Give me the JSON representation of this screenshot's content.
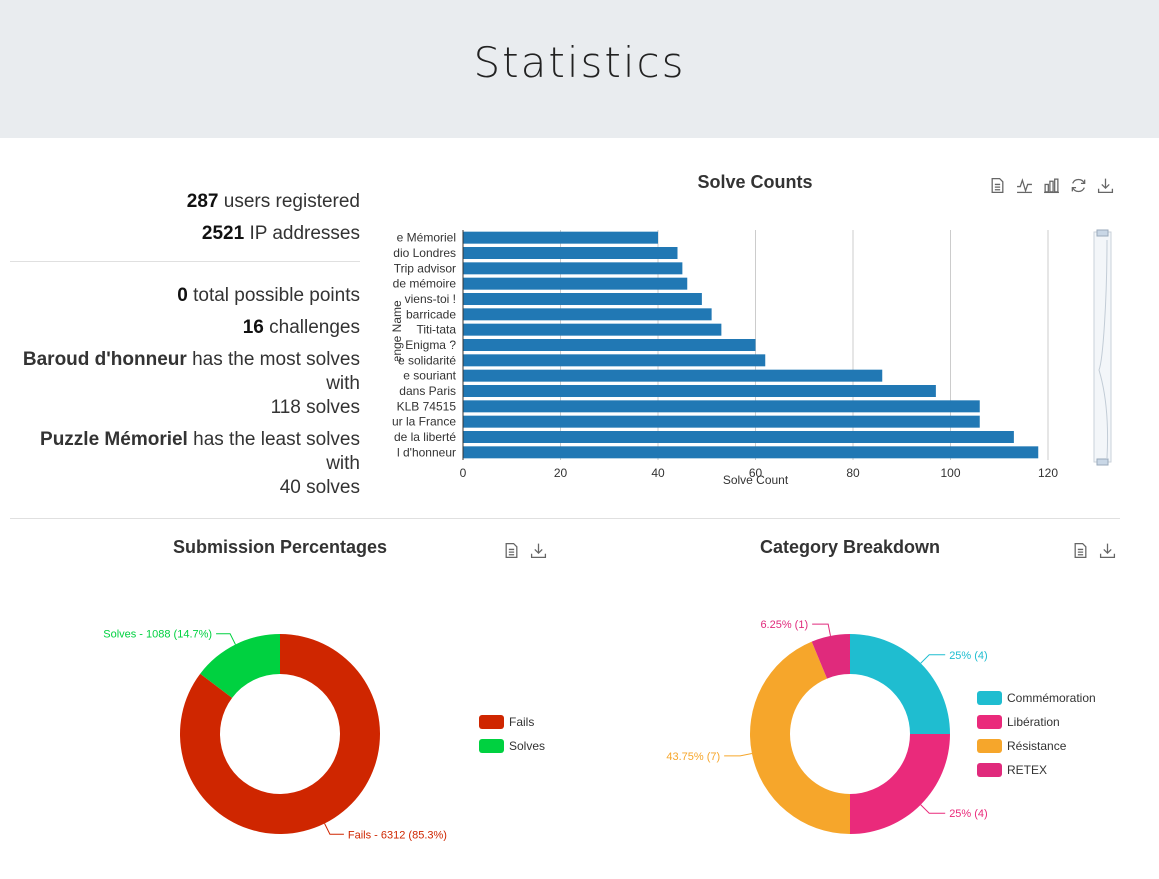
{
  "page": {
    "title": "Statistics"
  },
  "stats": {
    "users_count": "287",
    "users_label": "users registered",
    "ips_count": "2521",
    "ips_label": "IP addresses",
    "points_count": "0",
    "points_label": "total possible points",
    "challenges_count": "16",
    "challenges_label": "challenges",
    "most_name": "Baroud d'honneur",
    "most_label": "has the most solves with",
    "most_solves": "118 solves",
    "least_name": "Puzzle Mémoriel",
    "least_label": "has the least solves with",
    "least_solves": "40 solves"
  },
  "solve_counts": {
    "title": "Solve Counts",
    "toolbox": [
      "data-view-icon",
      "line-chart-icon",
      "bar-chart-icon",
      "restore-icon",
      "download-icon"
    ]
  },
  "submission": {
    "title": "Submission Percentages",
    "toolbox": [
      "data-view-icon",
      "download-icon"
    ],
    "labels": {
      "fails": "Fails - 6312 (85.3%)",
      "solves": "Solves - 1088 (14.7%)"
    },
    "legend": [
      "Fails",
      "Solves"
    ]
  },
  "category": {
    "title": "Category Breakdown",
    "toolbox": [
      "data-view-icon",
      "download-icon"
    ],
    "labels": [
      "25% (4)",
      "25% (4)",
      "43.75% (7)",
      "6.25% (1)"
    ],
    "legend": [
      "Commémoration",
      "Libération",
      "Résistance",
      "RETEX"
    ]
  },
  "colors": {
    "bar": "#2178b4",
    "fails": "#cf2600",
    "solves": "#00d140",
    "commemoration": "#1fbdd0",
    "liberation": "#ea2a7b",
    "resistance": "#f6a62b",
    "retex": "#e02a7c"
  },
  "chart_data": [
    {
      "type": "bar",
      "orientation": "horizontal",
      "title": "Solve Counts",
      "xlabel": "Solve Count",
      "ylabel": "Challenge Name",
      "xlim": [
        0,
        120
      ],
      "xticks": [
        0,
        20,
        40,
        60,
        80,
        100,
        120
      ],
      "categories": [
        "e Mémoriel",
        "dio Londres",
        "Trip advisor",
        "de mémoire",
        "viens-toi !",
        "barricade",
        "Titi-tata",
        "Enigma ?",
        "e solidarité",
        "e souriant",
        "dans Paris",
        "KLB 74515",
        "ur la France",
        "de la liberté",
        "l d'honneur"
      ],
      "values": [
        40,
        44,
        45,
        46,
        49,
        51,
        53,
        60,
        62,
        86,
        97,
        106,
        106,
        113,
        118
      ],
      "grid": true
    },
    {
      "type": "pie",
      "title": "Submission Percentages",
      "categories": [
        "Fails",
        "Solves"
      ],
      "values": [
        6312,
        1088
      ],
      "legend": "right"
    },
    {
      "type": "pie",
      "title": "Category Breakdown",
      "categories": [
        "Commémoration",
        "Libération",
        "Résistance",
        "RETEX"
      ],
      "values": [
        4,
        4,
        7,
        1
      ],
      "legend": "right"
    }
  ]
}
